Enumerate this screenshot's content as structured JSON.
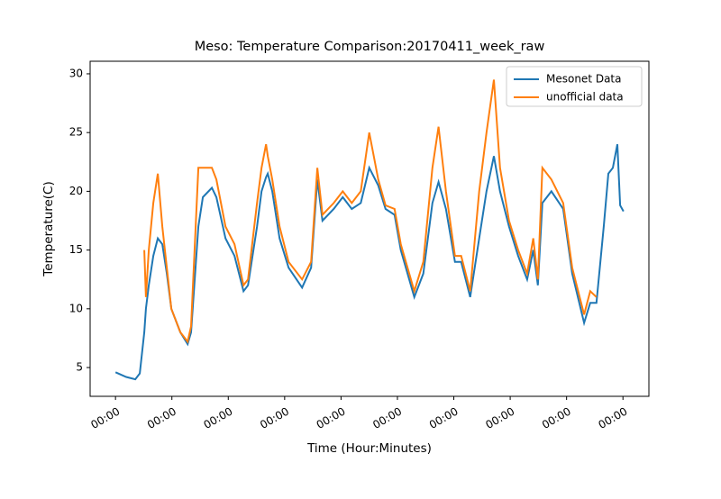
{
  "chart_data": {
    "type": "line",
    "title": "Meso: Temperature Comparison:20170411_week_raw",
    "x_label": "Time (Hour:Minutes)",
    "y_label": "Temperature(C)",
    "x": [
      0,
      0.19,
      0.35,
      0.43,
      0.51,
      0.54,
      0.59,
      0.67,
      0.75,
      0.83,
      0.91,
      0.99,
      1.15,
      1.28,
      1.34,
      1.47,
      1.55,
      1.71,
      1.79,
      1.95,
      2.11,
      2.27,
      2.35,
      2.51,
      2.59,
      2.67,
      2.7,
      2.78,
      2.91,
      3.07,
      3.31,
      3.47,
      3.58,
      3.67,
      3.87,
      4.03,
      4.19,
      4.35,
      4.5,
      4.66,
      4.79,
      4.95,
      5.06,
      5.3,
      5.46,
      5.62,
      5.73,
      5.86,
      6.02,
      6.13,
      6.29,
      6.45,
      6.58,
      6.71,
      6.82,
      6.98,
      7.14,
      7.3,
      7.41,
      7.49,
      7.57,
      7.73,
      7.94,
      8.1,
      8.31,
      8.42,
      8.53,
      8.66,
      8.74,
      8.82,
      8.9,
      8.95,
      9.01
    ],
    "series": [
      {
        "name": "Mesonet Data",
        "color": "#1f77b4",
        "values": [
          4.6,
          4.2,
          4.0,
          4.5,
          8,
          10,
          12,
          14.5,
          16,
          15.5,
          13,
          10,
          8,
          7,
          8,
          17,
          19.5,
          20.3,
          19.5,
          16,
          14.5,
          11.5,
          12,
          17,
          20,
          21.2,
          21.5,
          20,
          16,
          13.5,
          11.8,
          13.5,
          21,
          17.5,
          18.5,
          19.5,
          18.5,
          19,
          22,
          20.5,
          18.5,
          18,
          15,
          11,
          13,
          19,
          20.8,
          18.5,
          14,
          14,
          11,
          16,
          20,
          23,
          20,
          17,
          14.5,
          12.5,
          15,
          12,
          19,
          20,
          18.5,
          13,
          8.8,
          10.5,
          10.5,
          17,
          21.5,
          22,
          24,
          18.8,
          18.3
        ]
      },
      {
        "name": "unofficial data",
        "color": "#ff7f0e",
        "values": [
          null,
          null,
          null,
          null,
          15,
          11,
          15,
          19,
          21.5,
          17,
          13.5,
          10,
          8,
          7.2,
          8.5,
          22,
          22,
          22,
          21,
          17,
          15.5,
          12,
          12.5,
          19,
          22,
          24,
          23,
          21,
          17,
          14,
          12.5,
          14,
          22,
          18,
          19,
          20,
          19,
          20,
          25,
          21,
          18.8,
          18.5,
          15.5,
          11.5,
          14,
          22,
          25.5,
          20,
          14.5,
          14.5,
          11.5,
          20,
          25,
          29.5,
          22,
          17.5,
          15,
          13,
          16,
          12.5,
          22,
          21,
          19,
          13.5,
          9.5,
          11.5,
          11,
          null,
          null,
          null,
          null,
          null,
          null
        ]
      }
    ],
    "xlim": [
      -0.45,
      9.46
    ],
    "xticks": [
      {
        "value": 0,
        "label": "00:00"
      },
      {
        "value": 1,
        "label": "00:00"
      },
      {
        "value": 2,
        "label": "00:00"
      },
      {
        "value": 3,
        "label": "00:00"
      },
      {
        "value": 4,
        "label": "00:00"
      },
      {
        "value": 5,
        "label": "00:00"
      },
      {
        "value": 6,
        "label": "00:00"
      },
      {
        "value": 7,
        "label": "00:00"
      },
      {
        "value": 8,
        "label": "00:00"
      },
      {
        "value": 9,
        "label": "00:00"
      }
    ],
    "ylim": [
      2.55,
      31.07
    ],
    "yticks": [
      5,
      10,
      15,
      20,
      25,
      30
    ],
    "legend": "upper right"
  }
}
